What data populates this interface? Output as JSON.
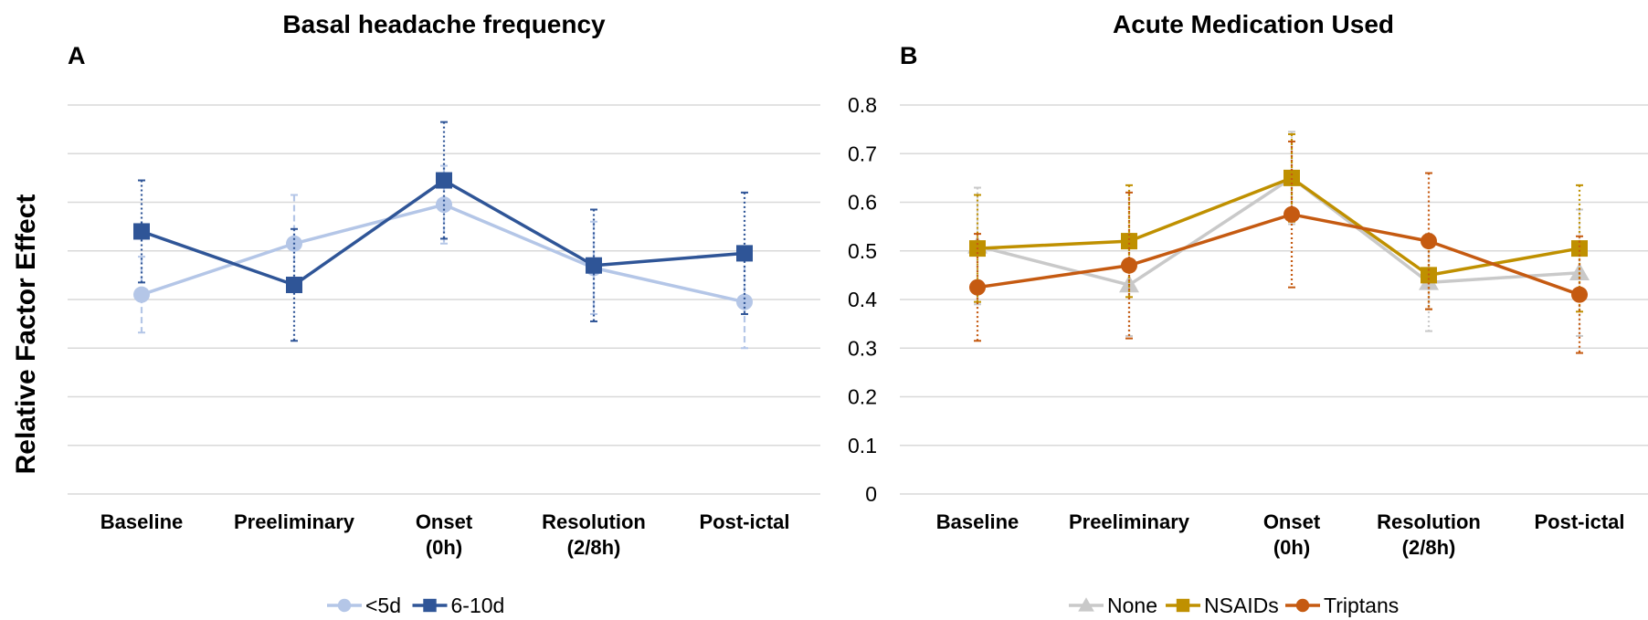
{
  "ylabel": "Relative Factor Effect",
  "chart_data": [
    {
      "panel": "A",
      "type": "line",
      "title": "Basal headache frequency",
      "categories": [
        [
          "Baseline"
        ],
        [
          "Preeliminary"
        ],
        [
          "Onset",
          "(0h)"
        ],
        [
          "Resolution",
          "(2/8h)"
        ],
        [
          "Post-ictal"
        ]
      ],
      "ylim": [
        0,
        0.8
      ],
      "yticks_shown": false,
      "grid": true,
      "legend_position": "bottom",
      "series": [
        {
          "name": "<5d",
          "color": "#b4c6e7",
          "marker": "circle",
          "err_style": "dashed",
          "values": [
            0.41,
            0.515,
            0.595,
            0.465,
            0.395
          ],
          "err": [
            0.078,
            0.1,
            0.08,
            0.095,
            0.095
          ]
        },
        {
          "name": "6-10d",
          "color": "#2f5597",
          "marker": "square",
          "err_style": "dotted",
          "values": [
            0.54,
            0.43,
            0.645,
            0.47,
            0.495
          ],
          "err": [
            0.105,
            0.115,
            0.12,
            0.115,
            0.125
          ]
        }
      ]
    },
    {
      "panel": "B",
      "type": "line",
      "title": "Acute Medication Used",
      "categories": [
        [
          "Baseline"
        ],
        [
          "Preeliminary"
        ],
        [
          "Onset",
          "(0h)"
        ],
        [
          "Resolution",
          "(2/8h)"
        ],
        [
          "Post-ictal"
        ]
      ],
      "ylim": [
        0,
        0.8
      ],
      "yticks": [
        "0",
        "0.1",
        "0.2",
        "0.3",
        "0.4",
        "0.5",
        "0.6",
        "0.7",
        "0.8"
      ],
      "grid": true,
      "legend_position": "bottom",
      "series": [
        {
          "name": "None",
          "color": "#c9c9c9",
          "marker": "triangle",
          "err_style": "dotted",
          "values": [
            0.51,
            0.43,
            0.65,
            0.435,
            0.455
          ],
          "err": [
            0.12,
            0.105,
            0.095,
            0.1,
            0.13
          ]
        },
        {
          "name": "NSAIDs",
          "color": "#bf9000",
          "marker": "square",
          "err_style": "dotted",
          "values": [
            0.505,
            0.52,
            0.65,
            0.45,
            0.505
          ],
          "err": [
            0.11,
            0.115,
            0.09,
            0.07,
            0.13
          ]
        },
        {
          "name": "Triptans",
          "color": "#c55a11",
          "marker": "circle",
          "err_style": "dotted",
          "values": [
            0.425,
            0.47,
            0.575,
            0.52,
            0.41
          ],
          "err": [
            0.11,
            0.15,
            0.15,
            0.14,
            0.12
          ]
        }
      ]
    }
  ]
}
